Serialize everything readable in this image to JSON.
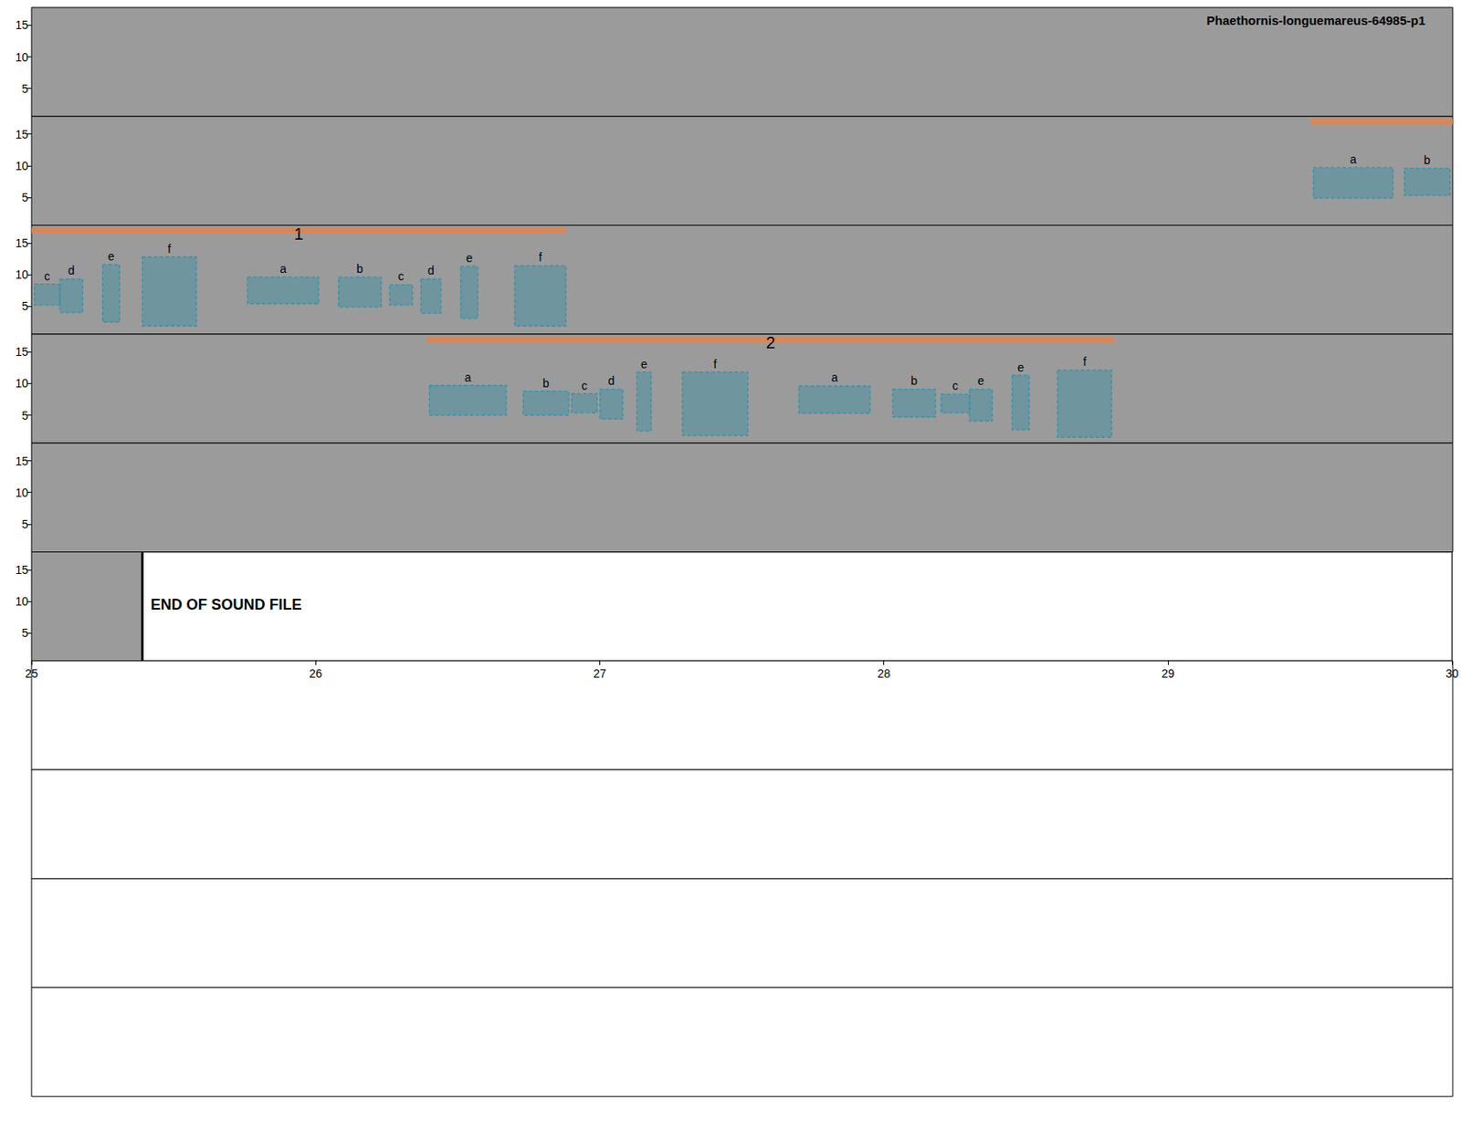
{
  "chart_data": {
    "type": "spectrogram",
    "title": "Phaethornis-longuemareus-64985-p1",
    "rows": [
      [
        0,
        5
      ],
      [
        5,
        10
      ],
      [
        10,
        15
      ],
      [
        15,
        20
      ],
      [
        20,
        25
      ],
      [
        25,
        30
      ],
      [
        30,
        35
      ],
      [
        35,
        40
      ],
      [
        40,
        45
      ],
      [
        45,
        50
      ]
    ],
    "ylim": [
      0.6,
      17.8
    ],
    "yticks": [
      5,
      10,
      15
    ],
    "xticks": [
      25,
      26,
      27,
      28,
      29,
      30
    ],
    "sound_end": 25.39,
    "end_label": "END OF SOUND FILE",
    "songs": [
      {
        "label": "1",
        "start": 9.5,
        "end": 11.88
      },
      {
        "label": "2",
        "start": 16.39,
        "end": 18.81
      }
    ],
    "selections": [
      {
        "label": "a",
        "start": 9.51,
        "end": 9.79,
        "fmin": 4.9,
        "fmax": 9.7
      },
      {
        "label": "b",
        "start": 9.83,
        "end": 9.99,
        "fmin": 5.3,
        "fmax": 9.6
      },
      {
        "label": "c",
        "start": 10.01,
        "end": 10.1,
        "fmin": 5.2,
        "fmax": 8.5
      },
      {
        "label": "d",
        "start": 10.1,
        "end": 10.18,
        "fmin": 4.0,
        "fmax": 9.3
      },
      {
        "label": "e",
        "start": 10.25,
        "end": 10.31,
        "fmin": 2.5,
        "fmax": 11.6
      },
      {
        "label": "f",
        "start": 10.39,
        "end": 10.58,
        "fmin": 1.9,
        "fmax": 12.8
      },
      {
        "label": "a",
        "start": 10.76,
        "end": 11.01,
        "fmin": 5.4,
        "fmax": 9.6
      },
      {
        "label": "b",
        "start": 11.08,
        "end": 11.23,
        "fmin": 4.9,
        "fmax": 9.6
      },
      {
        "label": "c",
        "start": 11.26,
        "end": 11.34,
        "fmin": 5.2,
        "fmax": 8.4
      },
      {
        "label": "d",
        "start": 11.37,
        "end": 11.44,
        "fmin": 3.9,
        "fmax": 9.3
      },
      {
        "label": "e",
        "start": 11.51,
        "end": 11.57,
        "fmin": 3.1,
        "fmax": 11.3
      },
      {
        "label": "f",
        "start": 11.7,
        "end": 11.88,
        "fmin": 1.9,
        "fmax": 11.4
      },
      {
        "label": "a",
        "start": 16.4,
        "end": 16.67,
        "fmin": 5.0,
        "fmax": 9.7
      },
      {
        "label": "b",
        "start": 16.73,
        "end": 16.89,
        "fmin": 5.0,
        "fmax": 8.8
      },
      {
        "label": "c",
        "start": 16.9,
        "end": 16.99,
        "fmin": 5.4,
        "fmax": 8.4
      },
      {
        "label": "d",
        "start": 17.0,
        "end": 17.08,
        "fmin": 4.4,
        "fmax": 9.1
      },
      {
        "label": "e",
        "start": 17.13,
        "end": 17.18,
        "fmin": 2.5,
        "fmax": 11.8
      },
      {
        "label": "f",
        "start": 17.29,
        "end": 17.52,
        "fmin": 1.8,
        "fmax": 11.8
      },
      {
        "label": "a",
        "start": 17.7,
        "end": 17.95,
        "fmin": 5.3,
        "fmax": 9.6
      },
      {
        "label": "b",
        "start": 18.03,
        "end": 18.18,
        "fmin": 4.7,
        "fmax": 9.1
      },
      {
        "label": "c",
        "start": 18.2,
        "end": 18.3,
        "fmin": 5.4,
        "fmax": 8.3
      },
      {
        "label": "e",
        "start": 18.3,
        "end": 18.38,
        "fmin": 4.1,
        "fmax": 9.1
      },
      {
        "label": "e",
        "start": 18.45,
        "end": 18.51,
        "fmin": 2.7,
        "fmax": 11.3
      },
      {
        "label": "f",
        "start": 18.61,
        "end": 18.8,
        "fmin": 1.5,
        "fmax": 12.1
      }
    ]
  }
}
